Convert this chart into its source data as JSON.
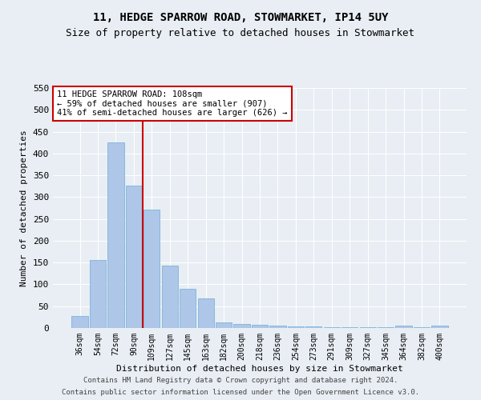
{
  "title1": "11, HEDGE SPARROW ROAD, STOWMARKET, IP14 5UY",
  "title2": "Size of property relative to detached houses in Stowmarket",
  "xlabel": "Distribution of detached houses by size in Stowmarket",
  "ylabel": "Number of detached properties",
  "categories": [
    "36sqm",
    "54sqm",
    "72sqm",
    "90sqm",
    "109sqm",
    "127sqm",
    "145sqm",
    "163sqm",
    "182sqm",
    "200sqm",
    "218sqm",
    "236sqm",
    "254sqm",
    "273sqm",
    "291sqm",
    "309sqm",
    "327sqm",
    "345sqm",
    "364sqm",
    "382sqm",
    "400sqm"
  ],
  "values": [
    28,
    155,
    425,
    327,
    272,
    143,
    90,
    67,
    13,
    10,
    7,
    5,
    4,
    3,
    2,
    1,
    1,
    1,
    5,
    1,
    5
  ],
  "bar_color": "#aec6e8",
  "bar_edge_color": "#6baed6",
  "annotation_text": "11 HEDGE SPARROW ROAD: 108sqm\n← 59% of detached houses are smaller (907)\n41% of semi-detached houses are larger (626) →",
  "annotation_box_color": "#ffffff",
  "annotation_box_edge_color": "#cc0000",
  "vline_color": "#cc0000",
  "vline_x_index": 4,
  "footer1": "Contains HM Land Registry data © Crown copyright and database right 2024.",
  "footer2": "Contains public sector information licensed under the Open Government Licence v3.0.",
  "ylim": [
    0,
    550
  ],
  "yticks": [
    0,
    50,
    100,
    150,
    200,
    250,
    300,
    350,
    400,
    450,
    500,
    550
  ],
  "background_color": "#e8eef4",
  "grid_color": "#ffffff",
  "title1_fontsize": 10,
  "title2_fontsize": 9
}
